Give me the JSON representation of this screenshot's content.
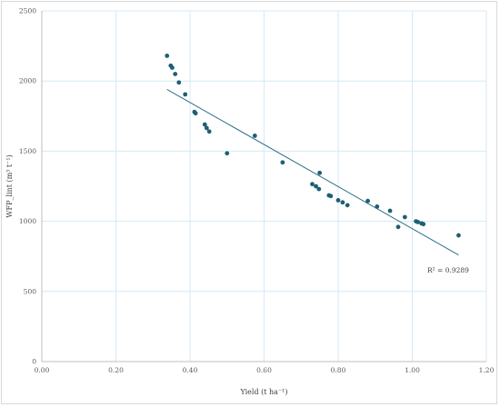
{
  "chart_data": {
    "type": "scatter",
    "title": "",
    "xlabel": "Yield (t ha⁻¹)",
    "ylabel": "WFP_lint (m³ t⁻¹)",
    "xlim": [
      0,
      1.2
    ],
    "ylim": [
      0,
      2500
    ],
    "x_ticks": [
      "0.00",
      "0.20",
      "0.40",
      "0.60",
      "0.80",
      "1.00",
      "1.20"
    ],
    "y_ticks": [
      "0",
      "500",
      "1000",
      "1500",
      "2000",
      "2500"
    ],
    "grid": true,
    "colors": {
      "points": "#1f5f73",
      "trendline": "#2e6f8a",
      "grid": "#d6e9f5",
      "axis": "#bfbfbf"
    },
    "series": [
      {
        "points": [
          [
            0.338,
            2180
          ],
          [
            0.348,
            2110
          ],
          [
            0.352,
            2095
          ],
          [
            0.36,
            2050
          ],
          [
            0.37,
            1990
          ],
          [
            0.387,
            1905
          ],
          [
            0.412,
            1780
          ],
          [
            0.415,
            1770
          ],
          [
            0.44,
            1690
          ],
          [
            0.445,
            1665
          ],
          [
            0.452,
            1640
          ],
          [
            0.5,
            1485
          ],
          [
            0.575,
            1610
          ],
          [
            0.65,
            1420
          ],
          [
            0.73,
            1265
          ],
          [
            0.74,
            1250
          ],
          [
            0.748,
            1230
          ],
          [
            0.75,
            1345
          ],
          [
            0.775,
            1185
          ],
          [
            0.78,
            1180
          ],
          [
            0.8,
            1150
          ],
          [
            0.812,
            1135
          ],
          [
            0.825,
            1115
          ],
          [
            0.88,
            1145
          ],
          [
            0.905,
            1105
          ],
          [
            0.94,
            1075
          ],
          [
            0.962,
            960
          ],
          [
            0.98,
            1030
          ],
          [
            1.01,
            1000
          ],
          [
            1.015,
            995
          ],
          [
            1.025,
            985
          ],
          [
            1.03,
            980
          ],
          [
            1.125,
            900
          ]
        ]
      }
    ],
    "trendline": {
      "x": [
        0.338,
        1.125
      ],
      "y": [
        1940,
        760
      ],
      "r2_label": "R² = 0.9289"
    }
  }
}
